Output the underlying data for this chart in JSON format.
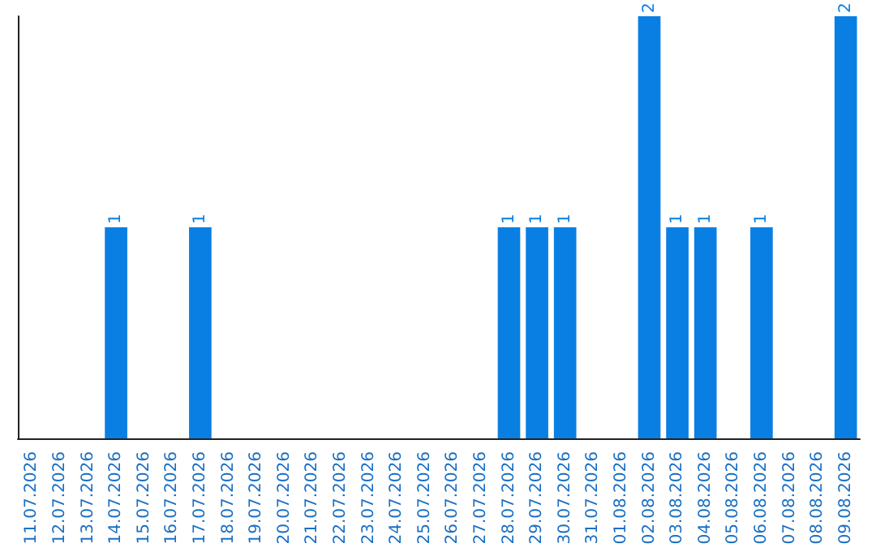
{
  "chart_data": {
    "type": "bar",
    "categories": [
      "11.07.2026",
      "12.07.2026",
      "13.07.2026",
      "14.07.2026",
      "15.07.2026",
      "16.07.2026",
      "17.07.2026",
      "18.07.2026",
      "19.07.2026",
      "20.07.2026",
      "21.07.2026",
      "22.07.2026",
      "23.07.2026",
      "24.07.2026",
      "25.07.2026",
      "26.07.2026",
      "27.07.2026",
      "28.07.2026",
      "29.07.2026",
      "30.07.2026",
      "31.07.2026",
      "01.08.2026",
      "02.08.2026",
      "03.08.2026",
      "04.08.2026",
      "05.08.2026",
      "06.08.2026",
      "07.08.2026",
      "08.08.2026",
      "09.08.2026"
    ],
    "values": [
      0,
      0,
      0,
      1,
      0,
      0,
      1,
      0,
      0,
      0,
      0,
      0,
      0,
      0,
      0,
      0,
      0,
      1,
      1,
      1,
      0,
      0,
      2,
      1,
      1,
      0,
      1,
      0,
      0,
      2
    ],
    "color": "#0a7fe3",
    "value_labels": [
      null,
      null,
      null,
      "1",
      null,
      null,
      "1",
      null,
      null,
      null,
      null,
      null,
      null,
      null,
      null,
      null,
      null,
      "1",
      "1",
      "1",
      null,
      null,
      "2",
      "1",
      "1",
      null,
      "1",
      null,
      null,
      "2"
    ],
    "tick_labels": "x",
    "grid": false
  }
}
